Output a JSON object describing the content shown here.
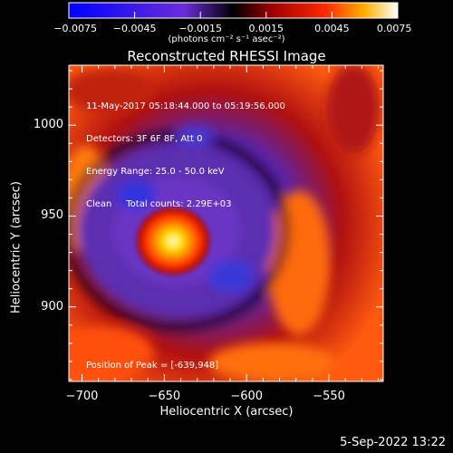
{
  "chart_data": {
    "type": "heatmap",
    "title": "Reconstructed RHESSI Image",
    "xlabel": "Heliocentric X (arcsec)",
    "ylabel": "Heliocentric Y (arcsec)",
    "xlim": [
      -708,
      -517
    ],
    "ylim": [
      859,
      1033
    ],
    "x_ticks": [
      {
        "value": -700,
        "label": "−700"
      },
      {
        "value": -650,
        "label": "−650"
      },
      {
        "value": -600,
        "label": "−600"
      },
      {
        "value": -550,
        "label": "−550"
      }
    ],
    "y_ticks": [
      {
        "value": 900,
        "label": "900"
      },
      {
        "value": 950,
        "label": "950"
      },
      {
        "value": 1000,
        "label": "1000"
      }
    ],
    "colorbar": {
      "range": [
        -0.0075,
        0.0075
      ],
      "ticks": [
        {
          "value": -0.0075,
          "label": "−0.0075"
        },
        {
          "value": -0.0045,
          "label": "−0.0045"
        },
        {
          "value": -0.0015,
          "label": "−0.0015"
        },
        {
          "value": 0.0015,
          "label": "0.0015"
        },
        {
          "value": 0.0045,
          "label": "0.0045"
        },
        {
          "value": 0.0075,
          "label": "0.0075"
        }
      ],
      "units": "(photons cm⁻² s⁻¹ asec⁻²)"
    },
    "annotations": [
      "11-May-2017 05:18:44.000 to 05:19:56.000",
      "Detectors: 3F 6F 8F, Att 0",
      "Energy Range: 25.0 - 50.0 keV",
      "Clean     Total counts: 2.29E+03"
    ],
    "peak_label": "Position of Peak = [-639,948]",
    "peak": {
      "x": -639,
      "y": 948
    }
  },
  "footer": {
    "date": "5-Sep-2022 13:22"
  }
}
